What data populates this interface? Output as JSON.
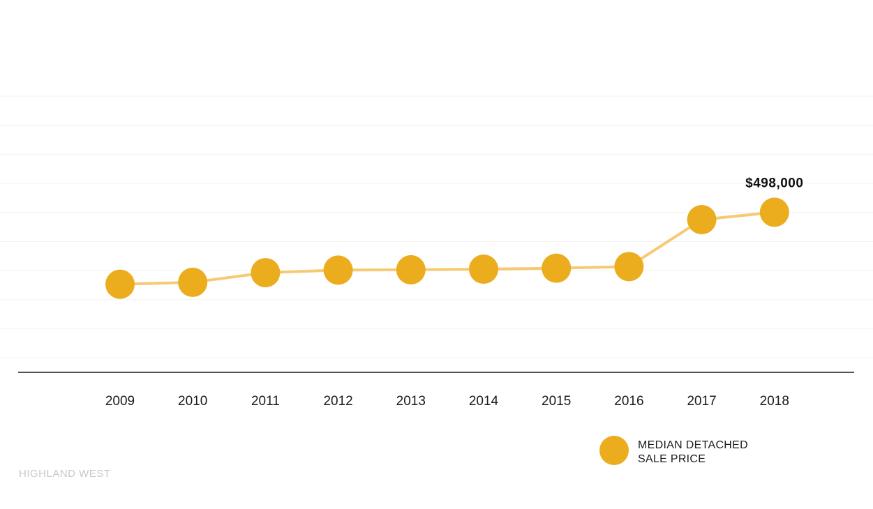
{
  "chart_data": {
    "type": "line",
    "x": [
      "2009",
      "2010",
      "2011",
      "2012",
      "2013",
      "2014",
      "2015",
      "2016",
      "2017",
      "2018"
    ],
    "series": [
      {
        "name": "MEDIAN DETACHED SALE PRICE",
        "values": [
          274000,
          280000,
          310000,
          318000,
          319000,
          321000,
          324000,
          329000,
          475000,
          498000
        ]
      }
    ],
    "data_labels": [
      {
        "index": 9,
        "text": "$498,000"
      }
    ],
    "ylim": [
      0,
      950000
    ],
    "grid": true,
    "legend": {
      "placement": "bottom-right",
      "lines": [
        "MEDIAN DETACHED",
        "SALE PRICE"
      ]
    },
    "colors": {
      "marker": "#EBAD1E",
      "line": "#F6CA72",
      "grid": "#f2f2f2",
      "axis": "#1a1a1a"
    }
  },
  "footer": {
    "region_label": "HIGHLAND WEST"
  }
}
